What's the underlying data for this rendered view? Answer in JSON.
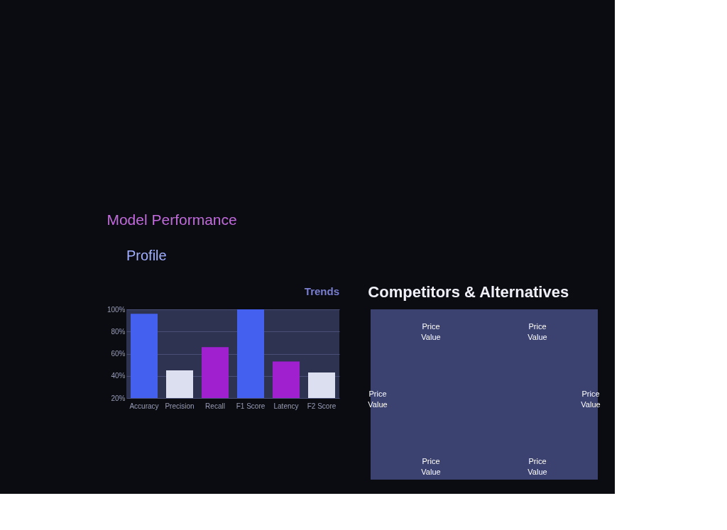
{
  "chart_data": [
    {
      "type": "bar",
      "title": "Model Performance",
      "annotations": [
        "Profile",
        "Trends"
      ],
      "categories": [
        "Accuracy",
        "Precision",
        "Recall",
        "F1 Score",
        "Latency",
        "F2 Score"
      ],
      "values": [
        96,
        45,
        66,
        100,
        53,
        43
      ],
      "colors": [
        "#4361ee",
        "#dcdff0",
        "#a020d0",
        "#4361ee",
        "#a020d0",
        "#dcdff0"
      ],
      "ylim": [
        20,
        100
      ],
      "yticks": [
        {
          "value": 20,
          "label": "20%"
        },
        {
          "value": 40,
          "label": "40%"
        },
        {
          "value": 60,
          "label": "60%"
        },
        {
          "value": 80,
          "label": "80%"
        },
        {
          "value": 100,
          "label": "100%"
        }
      ],
      "grid": "y"
    },
    {
      "type": "other",
      "title": "Competitors & Alternatives",
      "annotations": [
        "Price Value",
        "Price Value",
        "Price Value",
        "Price Value",
        "Price Value",
        "Price Value"
      ]
    }
  ]
}
